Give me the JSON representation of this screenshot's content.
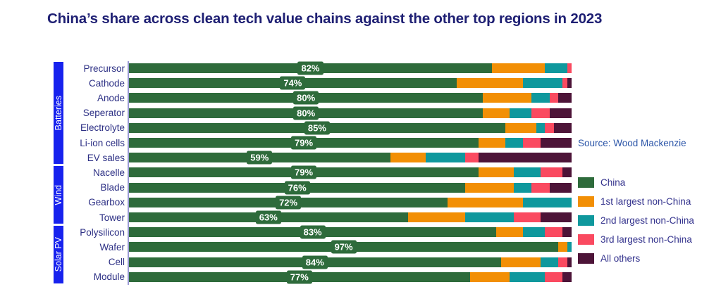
{
  "title": "China’s share across clean tech value chains against the other top regions in 2023",
  "source": "Source: Wood Mackenzie",
  "colors": {
    "title_text": "#1e1f73",
    "group_band": "#1722ee",
    "axis_line": "#9a9ad4",
    "row_label_text": "#2c2f84",
    "legend_text": "#32318c",
    "source_text": "#2b55a8",
    "china_green": "#2e6b3b",
    "first_orange": "#f28f05",
    "second_teal": "#0f989d",
    "third_pink": "#fa4a60",
    "others_purple": "#4d1438"
  },
  "chart_data": {
    "type": "bar",
    "orientation": "horizontal",
    "stacked": true,
    "unit": "%",
    "xlim": [
      0,
      100
    ],
    "title": "China’s share across clean tech value chains against the other top regions in 2023",
    "legend_position": "right",
    "grid": false,
    "categories": [
      "Precursor",
      "Cathode",
      "Anode",
      "Seperator",
      "Electrolyte",
      "Li-ion cells",
      "EV sales",
      "Nacelle",
      "Blade",
      "Gearbox",
      "Tower",
      "Polysilicon",
      "Wafer",
      "Cell",
      "Module"
    ],
    "category_groups": [
      {
        "label": "Batteries",
        "start": 0,
        "end": 6
      },
      {
        "label": "Wind",
        "start": 7,
        "end": 10
      },
      {
        "label": "Solar PV",
        "start": 11,
        "end": 14
      }
    ],
    "series": [
      {
        "name": "China",
        "color": "#2e6b3b",
        "values": [
          82,
          74,
          80,
          80,
          85,
          79,
          59,
          79,
          76,
          72,
          63,
          83,
          97,
          84,
          77
        ]
      },
      {
        "name": "1st largest non-China",
        "color": "#f28f05",
        "values": [
          12,
          15,
          11,
          6,
          7,
          6,
          8,
          8,
          11,
          17,
          13,
          6,
          2,
          9,
          9
        ]
      },
      {
        "name": "2nd largest non-China",
        "color": "#0f989d",
        "values": [
          5,
          9,
          4,
          5,
          2,
          4,
          9,
          6,
          4,
          11,
          11,
          5,
          1,
          4,
          8
        ]
      },
      {
        "name": "3rd largest non-China",
        "color": "#fa4a60",
        "values": [
          1,
          1,
          2,
          4,
          2,
          4,
          3,
          5,
          4,
          0,
          6,
          4,
          0,
          2,
          4
        ]
      },
      {
        "name": "All others",
        "color": "#4d1438",
        "values": [
          0,
          1,
          3,
          5,
          4,
          7,
          21,
          2,
          5,
          0,
          7,
          2,
          0,
          1,
          2
        ]
      }
    ],
    "data_labels": [
      "82%",
      "74%",
      "80%",
      "80%",
      "85%",
      "79%",
      "59%",
      "79%",
      "76%",
      "72%",
      "63%",
      "83%",
      "97%",
      "84%",
      "77%"
    ],
    "data_label_series": "China"
  }
}
